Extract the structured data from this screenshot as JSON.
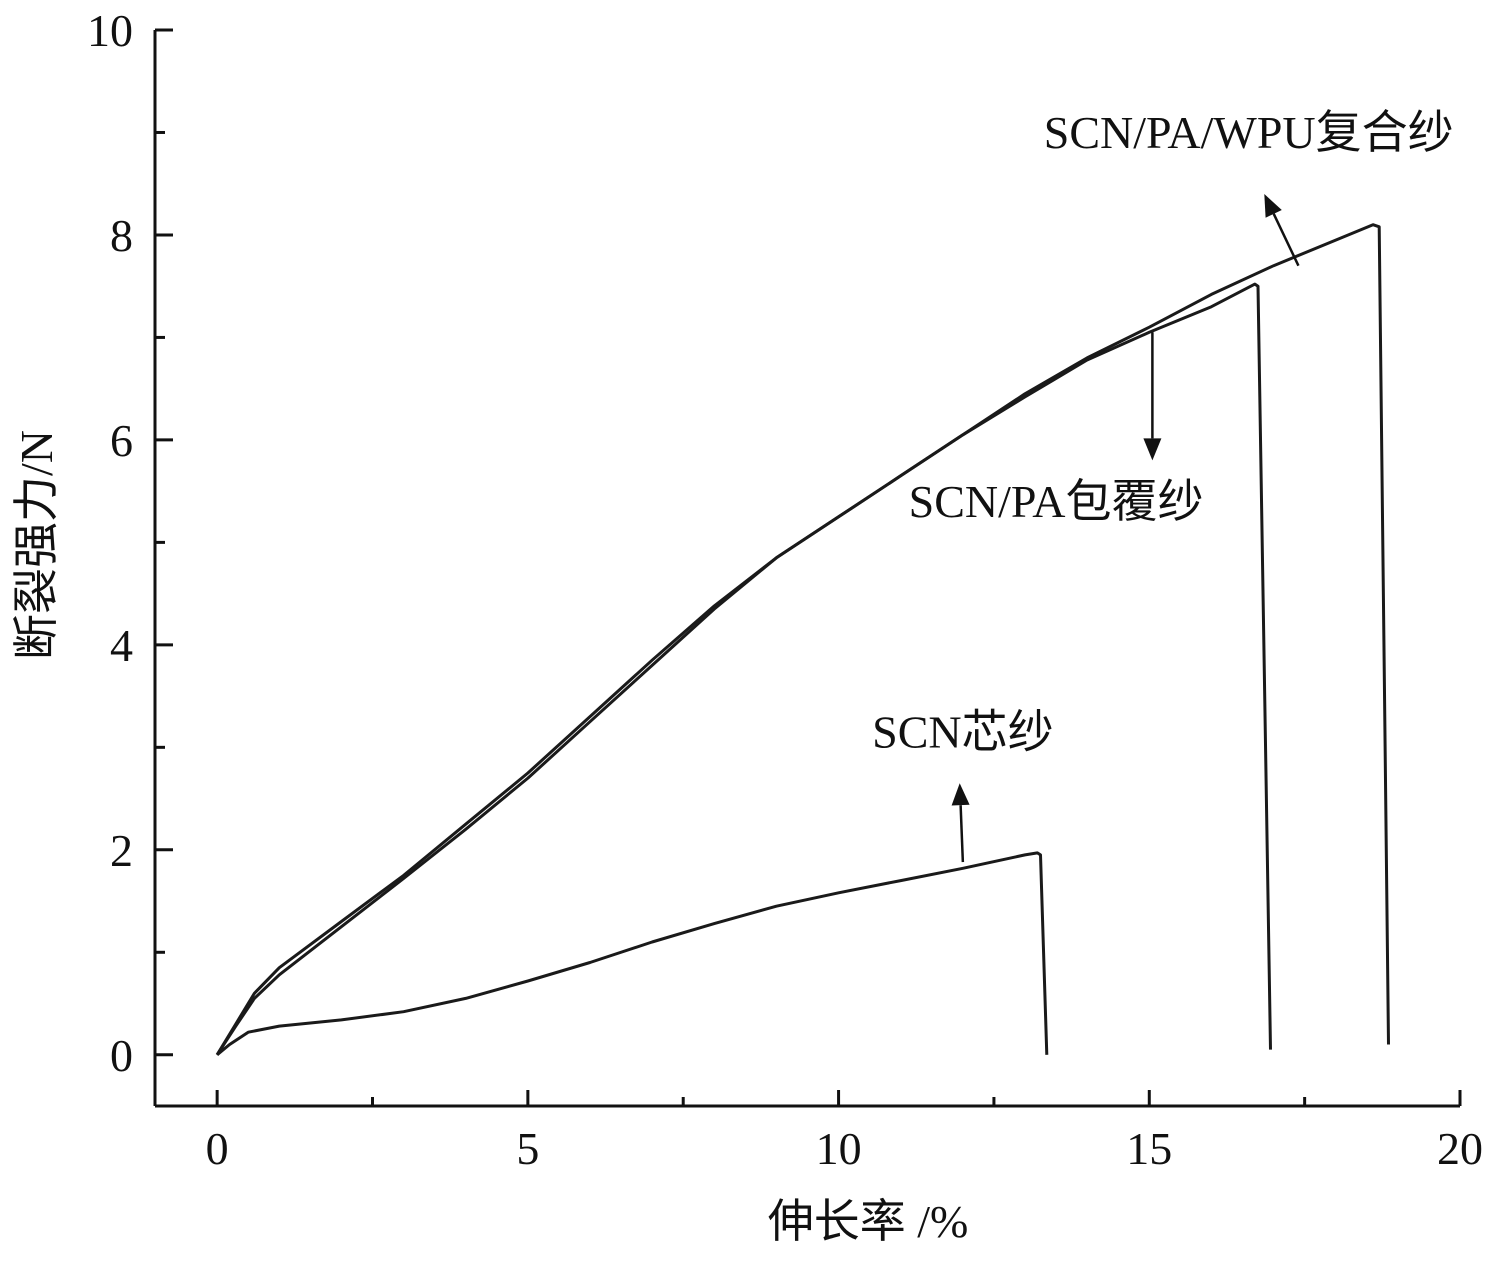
{
  "chart_data": {
    "type": "line",
    "xlabel": "伸长率 /%",
    "ylabel": "断裂强力/N",
    "xlim": [
      -1,
      20
    ],
    "ylim": [
      -0.5,
      10
    ],
    "xticks": [
      0,
      5,
      10,
      15,
      20
    ],
    "xticks_minor": [
      2.5,
      7.5,
      12.5,
      17.5
    ],
    "yticks": [
      0,
      2,
      4,
      6,
      8,
      10
    ],
    "yticks_minor": [
      1,
      3,
      5,
      7,
      9
    ],
    "grid": false,
    "legend": "none",
    "series": [
      {
        "points": [
          [
            0,
            0
          ],
          [
            0.3,
            0.3
          ],
          [
            0.6,
            0.6
          ],
          [
            1,
            0.85
          ],
          [
            2,
            1.3
          ],
          [
            3,
            1.75
          ],
          [
            4,
            2.25
          ],
          [
            5,
            2.75
          ],
          [
            6,
            3.3
          ],
          [
            7,
            3.85
          ],
          [
            8,
            4.38
          ],
          [
            9,
            4.85
          ],
          [
            10,
            5.25
          ],
          [
            11,
            5.65
          ],
          [
            12,
            6.05
          ],
          [
            13,
            6.45
          ],
          [
            14,
            6.8
          ],
          [
            15,
            7.1
          ],
          [
            16,
            7.42
          ],
          [
            17,
            7.7
          ],
          [
            18,
            7.95
          ],
          [
            18.6,
            8.1
          ],
          [
            18.7,
            8.08
          ],
          [
            18.85,
            0.1
          ]
        ]
      },
      {
        "points": [
          [
            0,
            0
          ],
          [
            0.3,
            0.28
          ],
          [
            0.6,
            0.55
          ],
          [
            1,
            0.78
          ],
          [
            2,
            1.25
          ],
          [
            3,
            1.72
          ],
          [
            4,
            2.2
          ],
          [
            5,
            2.7
          ],
          [
            6,
            3.25
          ],
          [
            7,
            3.8
          ],
          [
            8,
            4.35
          ],
          [
            9,
            4.85
          ],
          [
            10,
            5.25
          ],
          [
            11,
            5.65
          ],
          [
            12,
            6.05
          ],
          [
            13,
            6.42
          ],
          [
            14,
            6.78
          ],
          [
            15,
            7.05
          ],
          [
            16,
            7.3
          ],
          [
            16.7,
            7.52
          ],
          [
            16.75,
            7.5
          ],
          [
            16.95,
            0.05
          ]
        ]
      },
      {
        "points": [
          [
            0,
            0
          ],
          [
            0.2,
            0.1
          ],
          [
            0.5,
            0.22
          ],
          [
            1,
            0.28
          ],
          [
            2,
            0.34
          ],
          [
            3,
            0.42
          ],
          [
            4,
            0.55
          ],
          [
            5,
            0.72
          ],
          [
            6,
            0.9
          ],
          [
            7,
            1.1
          ],
          [
            8,
            1.28
          ],
          [
            9,
            1.45
          ],
          [
            10,
            1.58
          ],
          [
            11,
            1.7
          ],
          [
            12,
            1.82
          ],
          [
            13,
            1.95
          ],
          [
            13.2,
            1.97
          ],
          [
            13.25,
            1.95
          ],
          [
            13.35,
            0
          ]
        ]
      }
    ],
    "annotations": [
      {
        "text": "SCN/PA/WPU复合纱",
        "x": 16.6,
        "y": 8.85,
        "arrow_from": [
          17.4,
          7.7
        ],
        "arrow_to": [
          16.85,
          8.4
        ]
      },
      {
        "text": "SCN/PA包覆纱",
        "x": 13.5,
        "y": 5.25,
        "arrow_from": [
          15.05,
          7.05
        ],
        "arrow_to": [
          15.05,
          5.8
        ]
      },
      {
        "text": "SCN芯纱",
        "x": 12,
        "y": 3,
        "arrow_from": [
          12,
          1.88
        ],
        "arrow_to": [
          11.95,
          2.65
        ]
      }
    ]
  }
}
